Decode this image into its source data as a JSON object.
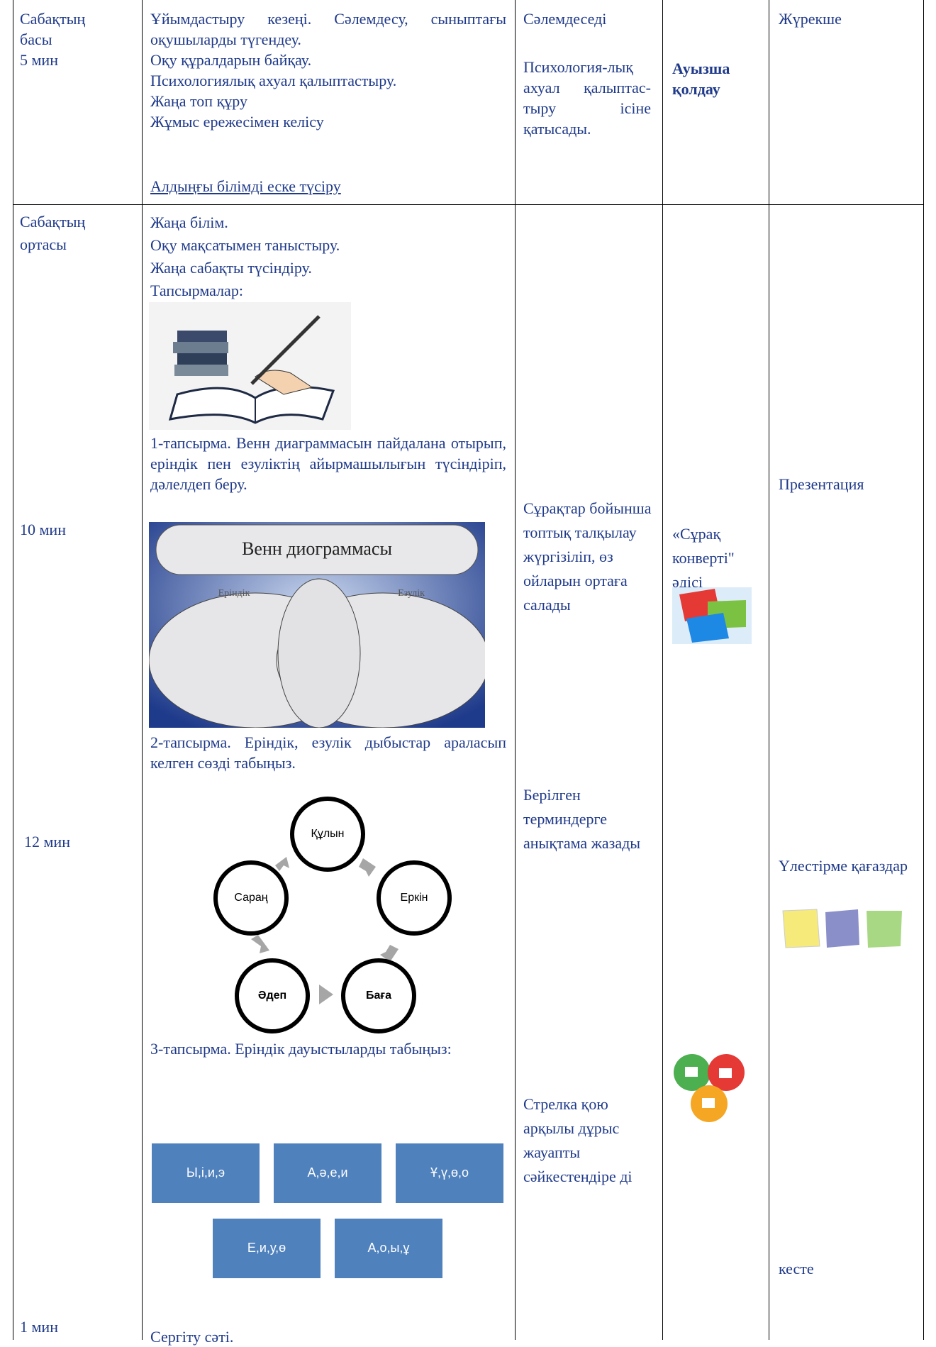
{
  "table": {
    "rows": [
      {
        "stage": [
          "Сабақтың",
          "басы",
          "5 мин"
        ],
        "teacher": [
          "Ұйымдастыру кезеңі. Сәлемдесу, сыныптағы оқушыларды түгендеу.",
          "Оқу құралдарын байқау.",
          "Психологиялық ахуал қалыптастыру.",
          "Жаңа топ құру",
          "Жұмыс ережесімен келісу",
          "Алдыңғы білімді еске түсіру"
        ],
        "student": [
          "Сәлемдеседі",
          "Психология-лық ахуал қалыптас-тыру ісіне қатысады."
        ],
        "assessment": [
          "Ауызша қолдау"
        ],
        "resources": [
          "Жүрекше"
        ]
      },
      {
        "stage": [
          "Сабақтың",
          "ортасы",
          "10 мин",
          "12 мин",
          "1 мин"
        ],
        "teacher": [
          "Жаңа білім.",
          "Оқу мақсатымен таныстыру.",
          "Жаңа сабақты түсіндіру.",
          "Тапсырмалар:",
          "1-тапсырма. Венн диаграммасын пайдалана отырып, еріндік пен езуліктің айырмашылығын түсіндіріп, дәлелдеп беру.",
          "2-тапсырма. Еріндік, езулік дыбыстар араласып келген сөзді табыңыз.",
          "3-тапсырма. Еріндік дауыстыларды табыңыз:",
          "Сергіту сәті."
        ],
        "venn": {
          "title": "Венн диограммасы",
          "left": "Еріндік",
          "right": "Езулік"
        },
        "cycle": [
          "Құлын",
          "Еркін",
          "Баға",
          "Әдеп",
          "Сараң"
        ],
        "boxes": [
          "Ы,і,и,э",
          "А,ә,е,и",
          "Ұ,ү,ө,о",
          "Е,и,у,ө",
          "А,о,ы,ұ"
        ],
        "student": [
          "Сұрақтар бойынша топтық талқылау жүргізіліп, өз ойларын ортаға салады",
          "Берілген терминдерге анықтама жазады",
          "Стрелка қою арқылы дұрыс жауапты сәйкестендіре ді"
        ],
        "assessment": [
          "«Сұрақ конверті\" әдісі"
        ],
        "resources": [
          "Презентация",
          "Үлестірме қағаздар",
          "кесте"
        ]
      }
    ]
  }
}
